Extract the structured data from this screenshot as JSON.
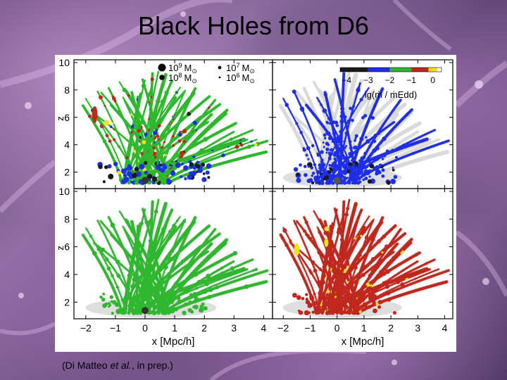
{
  "slide": {
    "title": "Black Holes from D6",
    "caption_prefix": "(Di Matteo ",
    "caption_italic": "et al.",
    "caption_suffix": ", in prep.)"
  },
  "chart_data": {
    "type": "scatter",
    "layout": "2x2 panel grid",
    "xlabel": "x [Mpc/h]",
    "ylabel": "z",
    "xlim": [
      -2.4,
      4.3
    ],
    "ylim": [
      0.8,
      10.2
    ],
    "xticks": [
      -2,
      -1,
      0,
      1,
      2,
      3,
      4
    ],
    "yticks": [
      2,
      4,
      6,
      8,
      10
    ],
    "panels": [
      {
        "name": "top-left",
        "description": "all black holes, coloured by accretion rate",
        "dominant_color": "#2fb82f"
      },
      {
        "name": "top-right",
        "description": "black holes with lg(mdot/mdot_Edd) between -4 and -2",
        "dominant_color": "#1f2fe6"
      },
      {
        "name": "bottom-left",
        "description": "black holes with lg(mdot/mdot_Edd) between -2 and -1",
        "dominant_color": "#33c033"
      },
      {
        "name": "bottom-right",
        "description": "black holes with lg(mdot/mdot_Edd) above -1",
        "dominant_color": "#c0281e"
      }
    ],
    "mass_legend": [
      {
        "exponent": "9",
        "unit": "M",
        "sub": "⊙",
        "size": "large"
      },
      {
        "exponent": "8",
        "unit": "M",
        "sub": "⊙",
        "size": "medium"
      },
      {
        "exponent": "7",
        "unit": "M",
        "sub": "⊙",
        "size": "small"
      },
      {
        "exponent": "6",
        "unit": "M",
        "sub": "⊙",
        "size": "tiny"
      }
    ],
    "mass_base": "10",
    "colorbar": {
      "label": "lg(ṁ / ṁEdd)",
      "ticks": [
        "−4",
        "−3",
        "−2",
        "−1",
        "0"
      ],
      "tick_values": [
        -4,
        -3,
        -2,
        -1,
        0
      ],
      "segments": [
        {
          "from": -4.3,
          "to": -3,
          "color": "#1a1a1a"
        },
        {
          "from": -3,
          "to": -2,
          "color": "#1f2fe6"
        },
        {
          "from": -2,
          "to": -1,
          "color": "#2fb82f"
        },
        {
          "from": -1,
          "to": -0.2,
          "color": "#c0281e"
        },
        {
          "from": -0.2,
          "to": 0.2,
          "color": "#f2e21a"
        }
      ]
    },
    "colors": {
      "black": "#1a1a1a",
      "blue": "#1f2fe6",
      "green": "#2fb82f",
      "red": "#c0281e",
      "yellow": "#f2e21a",
      "grey": "#dadada"
    }
  }
}
